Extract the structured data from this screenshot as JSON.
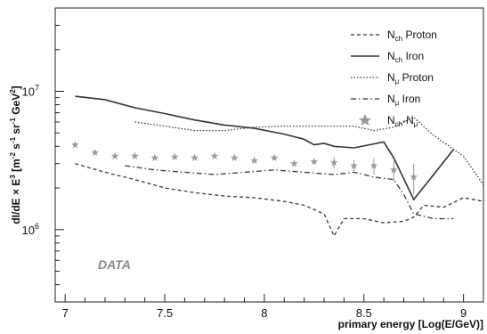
{
  "chart_data": {
    "type": "line",
    "xlabel": "primary energy [Log(E/GeV)]",
    "ylabel_main": "dI/dE × E",
    "ylabel_exp": "3",
    "ylabel_units": " [m",
    "ylabel_u1": "-2",
    "ylabel_u2": " s",
    "ylabel_u3": "-1",
    "ylabel_u4": " sr",
    "ylabel_u5": "-1",
    "ylabel_u6": " GeV",
    "ylabel_u7": "2",
    "ylabel_u8": "]",
    "xlim": [
      6.95,
      9.1
    ],
    "ylim": [
      300000,
      40000000
    ],
    "y_scale": "log",
    "x_ticks": [
      7,
      7.5,
      8,
      8.5,
      9
    ],
    "x_tick_labels": [
      "7",
      "7.5",
      "8",
      "8.5",
      "9"
    ],
    "y_tick_labels": [
      {
        "value": 1000000,
        "base": "10",
        "exp": "6"
      },
      {
        "value": 10000000,
        "base": "10",
        "exp": "7"
      }
    ],
    "annotation": "DATA",
    "legend_position": "top-right",
    "series": [
      {
        "name_main": "N",
        "name_sub": "ch",
        "name_rest": " Proton",
        "style": "dashed",
        "x": [
          7.05,
          7.2,
          7.35,
          7.5,
          7.65,
          7.8,
          7.95,
          8.1,
          8.2,
          8.3,
          8.35,
          8.4,
          8.5,
          8.6,
          8.7,
          8.75,
          8.8,
          8.9,
          9.0,
          9.1
        ],
        "y": [
          3000000,
          2600000,
          2300000,
          2000000,
          1850000,
          1750000,
          1700000,
          1600000,
          1500000,
          1300000,
          900000,
          1200000,
          1200000,
          1120000,
          1150000,
          1230000,
          1500000,
          1450000,
          1700000,
          1600000
        ]
      },
      {
        "name_main": "N",
        "name_sub": "ch",
        "name_rest": " Iron",
        "style": "solid",
        "x": [
          7.05,
          7.2,
          7.35,
          7.5,
          7.65,
          7.8,
          7.95,
          8.1,
          8.2,
          8.25,
          8.3,
          8.35,
          8.45,
          8.6,
          8.65,
          8.75,
          8.85,
          8.95
        ],
        "y": [
          9200000,
          8700000,
          7600000,
          6900000,
          6200000,
          5700000,
          5400000,
          4900000,
          4500000,
          4100000,
          4200000,
          4000000,
          3900000,
          4300000,
          3300000,
          1650000,
          2500000,
          3800000
        ]
      },
      {
        "name_main": "N",
        "name_sub": "μ",
        "name_rest": " Proton",
        "style": "dotted",
        "x": [
          7.35,
          7.5,
          7.65,
          7.8,
          7.95,
          8.1,
          8.25,
          8.45,
          8.55,
          8.65,
          8.75,
          8.85,
          9.0,
          9.1
        ],
        "y": [
          6000000,
          5600000,
          5200000,
          5200000,
          5500000,
          5600000,
          5600000,
          5600000,
          5200000,
          5500000,
          6500000,
          4800000,
          3400000,
          2100000
        ]
      },
      {
        "name_main": "N",
        "name_sub": "μ",
        "name_rest": " Iron",
        "style": "dashdot",
        "x": [
          7.3,
          7.45,
          7.6,
          7.75,
          7.9,
          8.05,
          8.2,
          8.35,
          8.45,
          8.55,
          8.65,
          8.7,
          8.75,
          8.85,
          8.95
        ],
        "y": [
          2900000,
          2700000,
          2600000,
          2500000,
          2600000,
          2700000,
          2600000,
          2500000,
          2600000,
          2400000,
          2300000,
          1800000,
          1300000,
          1200000,
          1200000
        ]
      },
      {
        "name_main": "N",
        "name_sub": "ch",
        "name_mid": "-N",
        "name_sub2": "μ",
        "style": "star",
        "x": [
          7.05,
          7.15,
          7.25,
          7.35,
          7.45,
          7.55,
          7.65,
          7.75,
          7.85,
          7.95,
          8.05,
          8.15,
          8.25,
          8.35,
          8.45,
          8.55,
          8.65,
          8.75
        ],
        "y": [
          4100000,
          3600000,
          3400000,
          3400000,
          3300000,
          3350000,
          3300000,
          3400000,
          3300000,
          3150000,
          3300000,
          3000000,
          3100000,
          3050000,
          2900000,
          2900000,
          2700000,
          2400000
        ],
        "err": [
          0,
          0,
          0,
          0,
          0,
          0,
          0,
          0,
          0,
          0,
          0,
          0,
          0,
          300000,
          300000,
          400000,
          450000,
          600000
        ]
      }
    ]
  }
}
